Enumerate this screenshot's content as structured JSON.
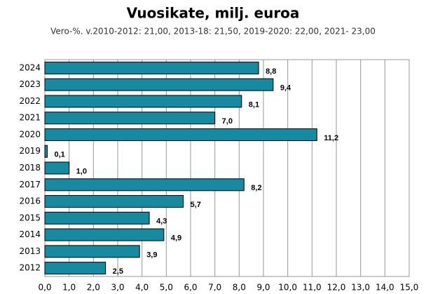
{
  "chart_data": {
    "type": "barh",
    "title": "Vuosikate, milj. euroa",
    "subtitle": "Vero-%. v.2010-2012: 21,00, 2013-18: 21,50, 2019-2020: 22,00, 2021- 23,00",
    "categories": [
      "2024",
      "2023",
      "2022",
      "2021",
      "2020",
      "2019",
      "2018",
      "2017",
      "2016",
      "2015",
      "2014",
      "2013",
      "2012"
    ],
    "values": [
      8.8,
      9.4,
      8.1,
      7.0,
      11.2,
      0.1,
      1.0,
      8.2,
      5.7,
      4.3,
      4.9,
      3.9,
      2.5
    ],
    "value_labels": [
      "8,8",
      "9,4",
      "8,1",
      "7,0",
      "11,2",
      "0,1",
      "1,0",
      "8,2",
      "5,7",
      "4,3",
      "4,9",
      "3,9",
      "2,5"
    ],
    "color": "#168aa0",
    "xlim": [
      0,
      15
    ],
    "xticks": [
      {
        "value": 0,
        "label": "0,0"
      },
      {
        "value": 1,
        "label": "1,0"
      },
      {
        "value": 2,
        "label": "2,0"
      },
      {
        "value": 3,
        "label": "3,0"
      },
      {
        "value": 4,
        "label": "4,0"
      },
      {
        "value": 5,
        "label": "5,0"
      },
      {
        "value": 6,
        "label": "6,0"
      },
      {
        "value": 7,
        "label": "7,0"
      },
      {
        "value": 8,
        "label": "8,0"
      },
      {
        "value": 9,
        "label": "9,0"
      },
      {
        "value": 10,
        "label": "10,0"
      },
      {
        "value": 11,
        "label": "11,0"
      },
      {
        "value": 12,
        "label": "12,0"
      },
      {
        "value": 13,
        "label": "13,0"
      },
      {
        "value": 14,
        "label": "14,0"
      },
      {
        "value": 15,
        "label": "15,0"
      }
    ],
    "grid": true
  }
}
